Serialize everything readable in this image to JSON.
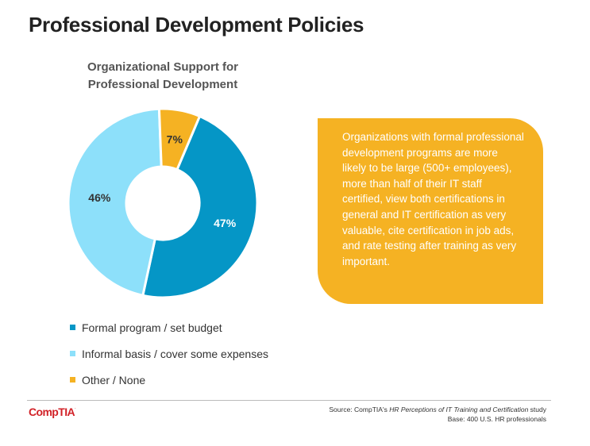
{
  "page": {
    "title": "Professional Development Policies"
  },
  "chart_data": {
    "type": "pie",
    "variant": "donut",
    "title_lines": [
      "Organizational Support for",
      "Professional Development"
    ],
    "start_angle_deg": 23,
    "slices": [
      {
        "name": "Formal program / set budget",
        "value": 47,
        "label": "47%",
        "color": "#0596C6",
        "label_color": "#ffffff"
      },
      {
        "name": "Informal basis / cover some expenses",
        "value": 46,
        "label": "46%",
        "color": "#8DE0FA",
        "label_color": "#333333"
      },
      {
        "name": "Other / None",
        "value": 7,
        "label": "7%",
        "color": "#F5B223",
        "label_color": "#333333"
      }
    ],
    "legend_position": "bottom"
  },
  "callout": {
    "text": "Organizations with formal professional development programs are more likely to be large (500+ employees), more than half of their IT staff certified, view both certifications in general and IT certification as very valuable, cite certification in job ads, and rate testing after training as very important.",
    "color": "#F5B223"
  },
  "footer": {
    "logo_text": "CompTIA",
    "logo_mark": ".",
    "source_prefix": "Source: CompTIA's ",
    "source_title": "HR Perceptions of IT Training and Certification",
    "source_suffix": " study",
    "base": "Base: 400 U.S. HR professionals"
  }
}
